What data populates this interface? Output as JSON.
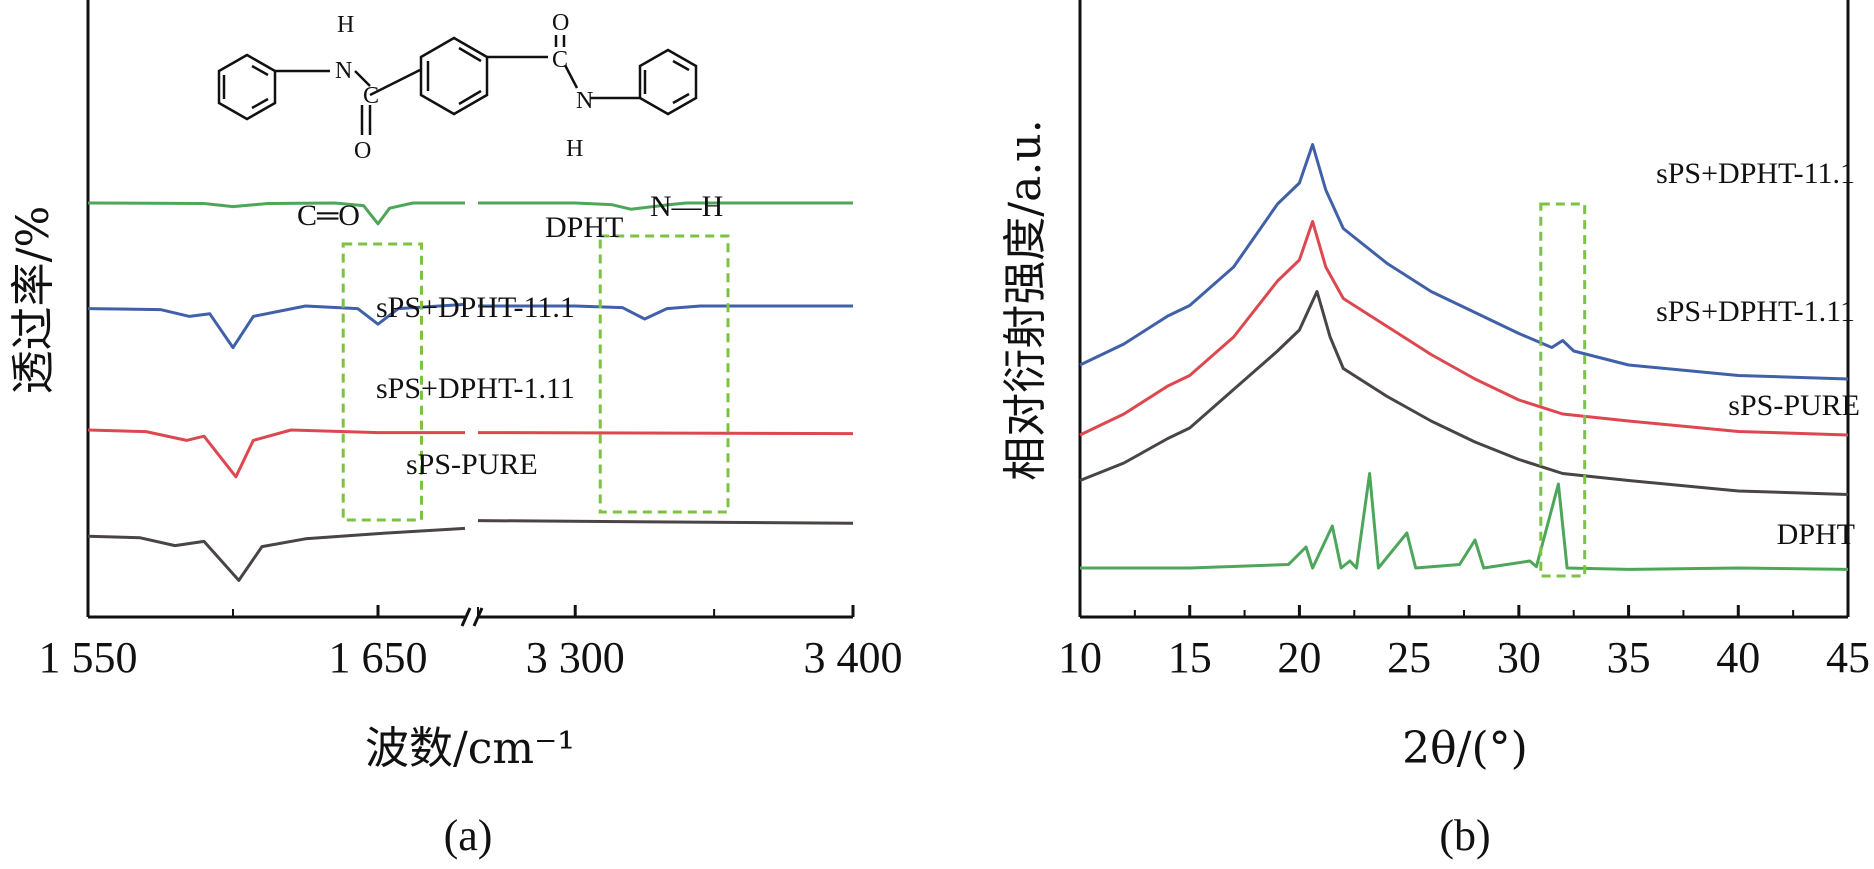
{
  "chart_data": [
    {
      "panel": "(a)",
      "type": "line",
      "xlabel": "波数/cm⁻¹",
      "ylabel": "透过率/%",
      "x_axis_break": true,
      "segments": [
        {
          "xlim": [
            1550,
            1680
          ],
          "ticks": [
            1550,
            1650
          ],
          "tick_labels": [
            "1 550",
            "1 650"
          ]
        },
        {
          "xlim": [
            3265,
            3400
          ],
          "ticks": [
            3300,
            3400
          ],
          "tick_labels": [
            "3 300",
            "3 400"
          ]
        }
      ],
      "annotations": [
        "C═O",
        "N—H"
      ],
      "highlight_boxes": [
        {
          "label": "C═O",
          "x_range": [
            1638,
            1665
          ]
        },
        {
          "label": "N—H",
          "x_range": [
            3309,
            3355
          ]
        }
      ],
      "series": [
        {
          "name": "DPHT",
          "color": "#4ea65a",
          "segment1": [
            [
              1550,
              1.0
            ],
            [
              1590,
              0.99
            ],
            [
              1600,
              0.93
            ],
            [
              1612,
              0.99
            ],
            [
              1635,
              1.0
            ],
            [
              1645,
              0.95
            ],
            [
              1650,
              0.6
            ],
            [
              1654,
              0.9
            ],
            [
              1662,
              1.0
            ],
            [
              1680,
              1.0
            ]
          ],
          "segment2": [
            [
              3265,
              1.0
            ],
            [
              3300,
              1.0
            ],
            [
              3313,
              0.97
            ],
            [
              3320,
              0.88
            ],
            [
              3334,
              0.97
            ],
            [
              3340,
              1.0
            ],
            [
              3400,
              1.0
            ]
          ]
        },
        {
          "name": "sPS+DPHT-11.1",
          "color": "#4060a8",
          "segment1": [
            [
              1550,
              0.7
            ],
            [
              1575,
              0.68
            ],
            [
              1585,
              0.55
            ],
            [
              1592,
              0.6
            ],
            [
              1600,
              -0.05
            ],
            [
              1607,
              0.55
            ],
            [
              1625,
              0.75
            ],
            [
              1643,
              0.7
            ],
            [
              1650,
              0.4
            ],
            [
              1657,
              0.7
            ],
            [
              1680,
              0.78
            ]
          ],
          "segment2": [
            [
              3265,
              0.75
            ],
            [
              3300,
              0.75
            ],
            [
              3317,
              0.72
            ],
            [
              3325,
              0.5
            ],
            [
              3333,
              0.7
            ],
            [
              3345,
              0.75
            ],
            [
              3400,
              0.75
            ]
          ]
        },
        {
          "name": "sPS+DPHT-1.11",
          "color": "#dd4850",
          "segment1": [
            [
              1550,
              0.0
            ],
            [
              1570,
              -0.03
            ],
            [
              1584,
              -0.2
            ],
            [
              1590,
              -0.12
            ],
            [
              1601,
              -0.9
            ],
            [
              1607,
              -0.2
            ],
            [
              1620,
              0.0
            ],
            [
              1650,
              -0.05
            ],
            [
              1680,
              -0.05
            ]
          ],
          "segment2": [
            [
              3265,
              -0.05
            ],
            [
              3400,
              -0.07
            ]
          ]
        },
        {
          "name": "sPS-PURE",
          "color": "#4a4444",
          "segment1": [
            [
              1550,
              -0.6
            ],
            [
              1568,
              -0.63
            ],
            [
              1580,
              -0.78
            ],
            [
              1590,
              -0.7
            ],
            [
              1602,
              -1.45
            ],
            [
              1610,
              -0.8
            ],
            [
              1625,
              -0.65
            ],
            [
              1650,
              -0.55
            ],
            [
              1680,
              -0.45
            ]
          ],
          "segment2": [
            [
              3265,
              -0.3
            ],
            [
              3400,
              -0.35
            ]
          ]
        }
      ],
      "molecule_labels": [
        "H",
        "N",
        "C",
        "O",
        "O",
        "C",
        "N",
        "H"
      ]
    },
    {
      "panel": "(b)",
      "type": "line",
      "xlabel": "2θ/(°)",
      "ylabel": "相对衍射强度/a.u.",
      "xlim": [
        10,
        45
      ],
      "ticks": [
        10,
        15,
        20,
        25,
        30,
        35,
        40,
        45
      ],
      "tick_labels": [
        "10",
        "15",
        "20",
        "25",
        "30",
        "35",
        "40",
        "45"
      ],
      "highlight_boxes": [
        {
          "x_range": [
            31,
            33
          ]
        }
      ],
      "series": [
        {
          "name": "sPS+DPHT-11.1",
          "color": "#4060a8",
          "points": [
            [
              10,
              3.0
            ],
            [
              12,
              3.3
            ],
            [
              13,
              3.5
            ],
            [
              14,
              3.7
            ],
            [
              15,
              3.85
            ],
            [
              17,
              4.4
            ],
            [
              19,
              5.3
            ],
            [
              20,
              5.6
            ],
            [
              20.6,
              6.15
            ],
            [
              21.2,
              5.5
            ],
            [
              22,
              4.95
            ],
            [
              24,
              4.45
            ],
            [
              26,
              4.05
            ],
            [
              28,
              3.75
            ],
            [
              30,
              3.45
            ],
            [
              31.5,
              3.25
            ],
            [
              32,
              3.35
            ],
            [
              32.5,
              3.2
            ],
            [
              35,
              3.0
            ],
            [
              40,
              2.85
            ],
            [
              45,
              2.8
            ]
          ]
        },
        {
          "name": "sPS+DPHT-1.11",
          "color": "#dd4850",
          "points": [
            [
              10,
              2.0
            ],
            [
              12,
              2.3
            ],
            [
              14,
              2.7
            ],
            [
              15,
              2.85
            ],
            [
              17,
              3.4
            ],
            [
              19,
              4.2
            ],
            [
              20,
              4.5
            ],
            [
              20.6,
              5.05
            ],
            [
              21.2,
              4.4
            ],
            [
              22,
              3.95
            ],
            [
              24,
              3.55
            ],
            [
              26,
              3.15
            ],
            [
              28,
              2.8
            ],
            [
              30,
              2.5
            ],
            [
              32,
              2.3
            ],
            [
              35,
              2.2
            ],
            [
              40,
              2.05
            ],
            [
              45,
              2.0
            ]
          ]
        },
        {
          "name": "sPS-PURE",
          "color": "#4a4444",
          "points": [
            [
              10,
              1.35
            ],
            [
              12,
              1.6
            ],
            [
              14,
              1.95
            ],
            [
              15,
              2.1
            ],
            [
              17,
              2.65
            ],
            [
              19,
              3.2
            ],
            [
              20,
              3.5
            ],
            [
              20.8,
              4.05
            ],
            [
              21.4,
              3.4
            ],
            [
              22,
              2.95
            ],
            [
              24,
              2.55
            ],
            [
              26,
              2.2
            ],
            [
              28,
              1.9
            ],
            [
              30,
              1.65
            ],
            [
              32,
              1.45
            ],
            [
              35,
              1.35
            ],
            [
              40,
              1.2
            ],
            [
              45,
              1.15
            ]
          ]
        },
        {
          "name": "DPHT",
          "color": "#4ea65a",
          "points": [
            [
              10,
              0.1
            ],
            [
              15,
              0.1
            ],
            [
              19.5,
              0.15
            ],
            [
              20.3,
              0.4
            ],
            [
              20.6,
              0.1
            ],
            [
              21.5,
              0.7
            ],
            [
              21.9,
              0.1
            ],
            [
              22.3,
              0.2
            ],
            [
              22.6,
              0.1
            ],
            [
              23.2,
              1.45
            ],
            [
              23.6,
              0.1
            ],
            [
              24.9,
              0.6
            ],
            [
              25.3,
              0.1
            ],
            [
              27.3,
              0.15
            ],
            [
              28,
              0.5
            ],
            [
              28.4,
              0.1
            ],
            [
              30.5,
              0.2
            ],
            [
              30.8,
              0.12
            ],
            [
              31.8,
              1.3
            ],
            [
              32.2,
              0.1
            ],
            [
              35,
              0.08
            ],
            [
              40,
              0.1
            ],
            [
              45,
              0.08
            ]
          ]
        }
      ]
    }
  ],
  "panel_labels": {
    "a": "(a)",
    "b": "(b)"
  }
}
